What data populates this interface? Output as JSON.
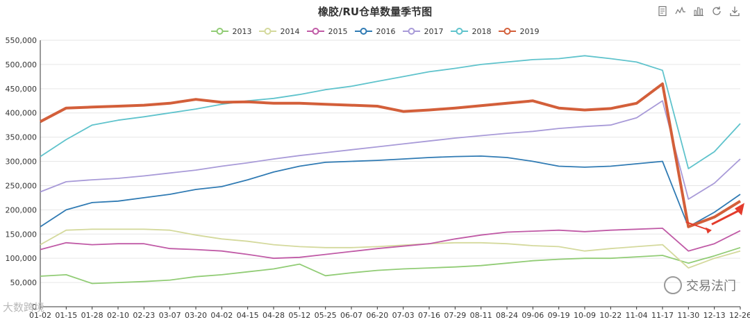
{
  "toolbox": [
    {
      "name": "data-view-icon"
    },
    {
      "name": "line-chart-icon"
    },
    {
      "name": "bar-chart-icon"
    },
    {
      "name": "restore-icon"
    },
    {
      "name": "save-image-icon"
    }
  ],
  "brand": "交易法门",
  "watermark": "大数跨境",
  "colors": {
    "2013": "#91cc75",
    "2014": "#d4d99c",
    "2015": "#c05aa6",
    "2016": "#2f7ab3",
    "2017": "#a89ad8",
    "2018": "#5fc3cc",
    "2019": "#d35f3a",
    "arrow": "#e33b2c",
    "grid": "#e6e6e6",
    "axis": "#333333"
  },
  "chart_data": {
    "type": "line",
    "title": "橡胶/RU仓单数量季节图",
    "legend_position": "top-center",
    "grid": true,
    "ylim": [
      0,
      550000
    ],
    "y_ticks": [
      "0",
      "50,000",
      "100,000",
      "150,000",
      "200,000",
      "250,000",
      "300,000",
      "350,000",
      "400,000",
      "450,000",
      "500,000",
      "550,000"
    ],
    "x_ticks": [
      "01-02",
      "01-15",
      "01-28",
      "02-10",
      "02-23",
      "03-07",
      "03-20",
      "04-02",
      "04-15",
      "04-28",
      "05-12",
      "05-25",
      "06-07",
      "06-20",
      "07-03",
      "07-16",
      "07-29",
      "08-11",
      "08-24",
      "09-06",
      "09-19",
      "10-09",
      "10-22",
      "11-04",
      "11-17",
      "11-30",
      "12-13",
      "12-26"
    ],
    "x": [
      "01-02",
      "01-15",
      "01-28",
      "02-10",
      "02-23",
      "03-07",
      "03-20",
      "04-02",
      "04-15",
      "04-28",
      "05-12",
      "05-25",
      "06-07",
      "06-20",
      "07-03",
      "07-16",
      "07-29",
      "08-11",
      "08-24",
      "09-06",
      "09-19",
      "10-09",
      "10-22",
      "11-04",
      "11-17",
      "11-30",
      "12-13",
      "12-26"
    ],
    "series": [
      {
        "name": "2013",
        "values": [
          63000,
          66000,
          48000,
          50000,
          52000,
          55000,
          62000,
          66000,
          72000,
          78000,
          88000,
          64000,
          70000,
          75000,
          78000,
          80000,
          82000,
          85000,
          90000,
          95000,
          98000,
          100000,
          100000,
          103000,
          106000,
          90000,
          105000,
          122000
        ]
      },
      {
        "name": "2014",
        "values": [
          128000,
          158000,
          160000,
          160000,
          160000,
          158000,
          148000,
          140000,
          135000,
          128000,
          124000,
          122000,
          122000,
          124000,
          127000,
          130000,
          132000,
          132000,
          130000,
          126000,
          124000,
          115000,
          120000,
          124000,
          128000,
          80000,
          100000,
          115000
        ]
      },
      {
        "name": "2015",
        "values": [
          118000,
          132000,
          128000,
          130000,
          130000,
          120000,
          118000,
          115000,
          108000,
          100000,
          102000,
          108000,
          114000,
          120000,
          125000,
          130000,
          140000,
          148000,
          154000,
          156000,
          158000,
          155000,
          158000,
          160000,
          162000,
          115000,
          130000,
          157000
        ]
      },
      {
        "name": "2016",
        "values": [
          165000,
          200000,
          215000,
          218000,
          225000,
          232000,
          242000,
          248000,
          262000,
          278000,
          290000,
          298000,
          300000,
          302000,
          305000,
          308000,
          310000,
          311000,
          308000,
          300000,
          290000,
          288000,
          290000,
          295000,
          300000,
          165000,
          195000,
          232000
        ]
      },
      {
        "name": "2017",
        "values": [
          237000,
          258000,
          262000,
          265000,
          270000,
          276000,
          282000,
          290000,
          297000,
          305000,
          312000,
          318000,
          324000,
          330000,
          336000,
          342000,
          348000,
          353000,
          358000,
          362000,
          368000,
          372000,
          375000,
          390000,
          425000,
          222000,
          255000,
          305000
        ]
      },
      {
        "name": "2018",
        "values": [
          310000,
          345000,
          375000,
          385000,
          392000,
          400000,
          408000,
          418000,
          425000,
          430000,
          438000,
          448000,
          455000,
          465000,
          475000,
          485000,
          492000,
          500000,
          505000,
          510000,
          512000,
          518000,
          512000,
          505000,
          488000,
          285000,
          320000,
          378000
        ]
      },
      {
        "name": "2019",
        "values": [
          382000,
          410000,
          412000,
          414000,
          416000,
          420000,
          428000,
          422000,
          423000,
          420000,
          420000,
          418000,
          416000,
          414000,
          403000,
          406000,
          410000,
          415000,
          420000,
          425000,
          410000,
          406000,
          409000,
          420000,
          460000,
          165000,
          185000,
          218000
        ]
      }
    ],
    "x_2019_last_index": 27
  }
}
